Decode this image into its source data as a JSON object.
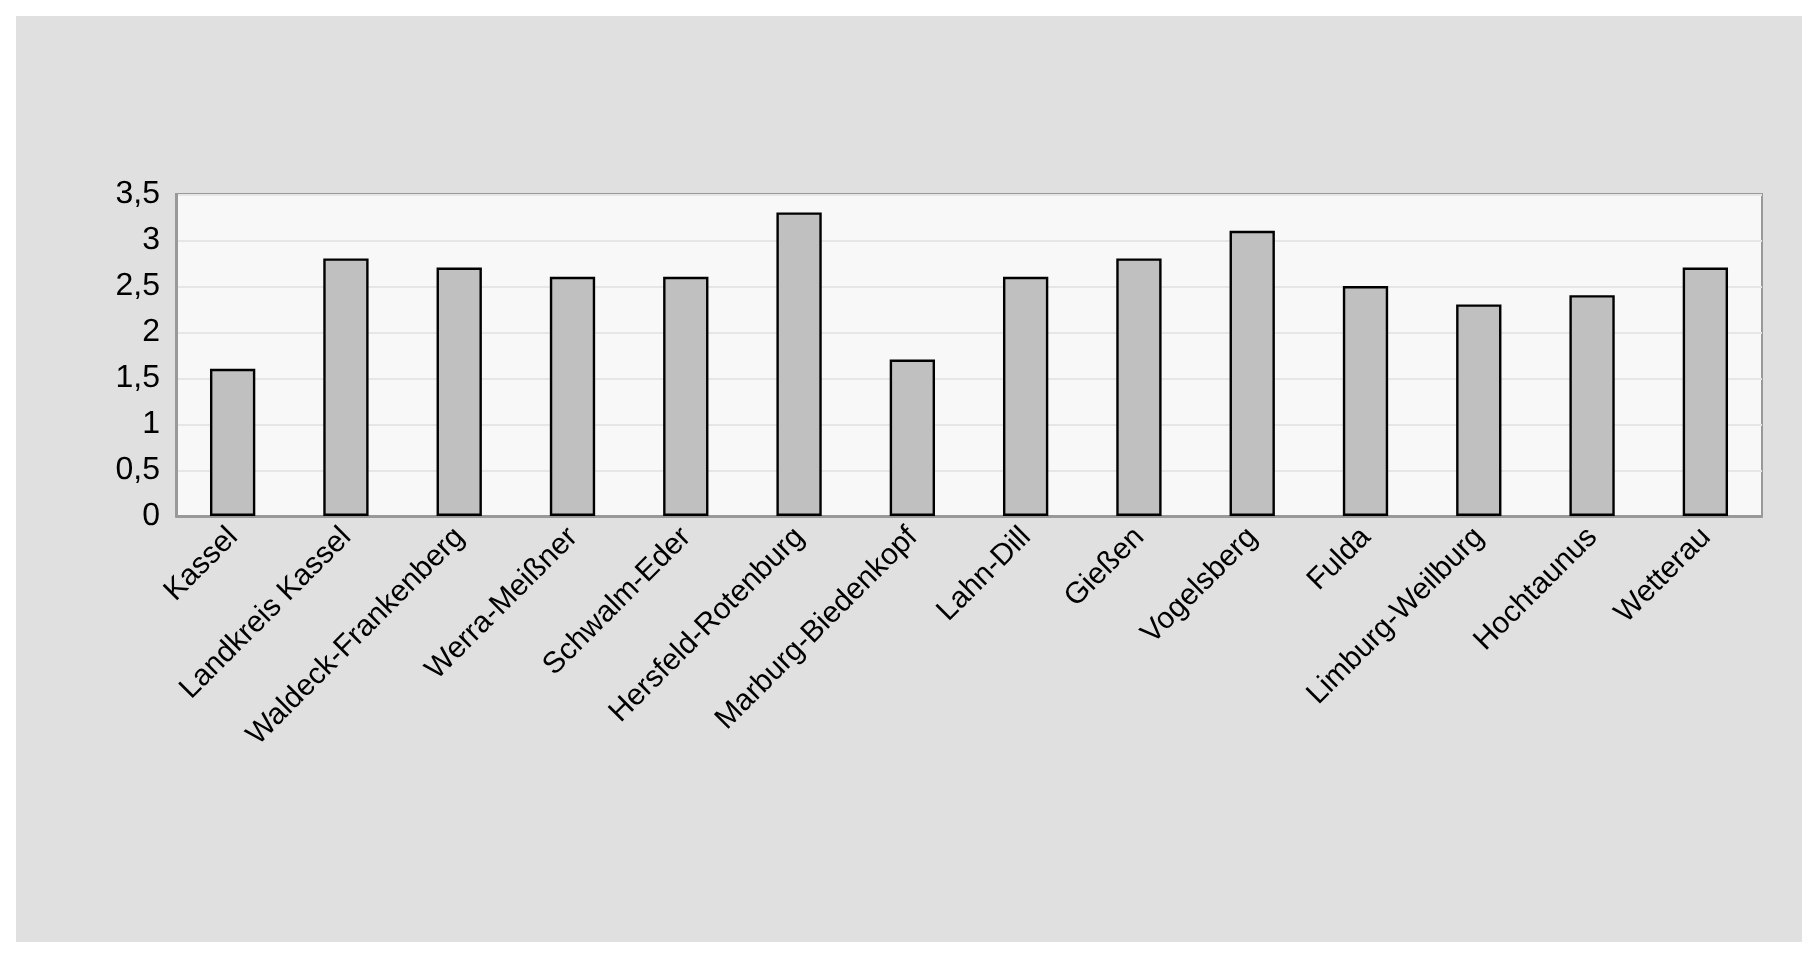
{
  "chart_data": {
    "type": "bar",
    "categories": [
      "Kassel",
      "Landkreis Kassel",
      "Waldeck-Frankenberg",
      "Werra-Meißner",
      "Schwalm-Eder",
      "Hersfeld-Rotenburg",
      "Marburg-Biedenkopf",
      "Lahn-Dill",
      "Gießen",
      "Vogelsberg",
      "Fulda",
      "Limburg-Weilburg",
      "Hochtaunus",
      "Wetterau"
    ],
    "values": [
      1.6,
      2.8,
      2.7,
      2.6,
      2.6,
      3.3,
      1.7,
      2.6,
      2.8,
      3.1,
      2.5,
      2.3,
      2.4,
      2.7
    ],
    "color": "#c0c0c0",
    "ylim": [
      0,
      3.5
    ],
    "yticks": [
      0,
      {
        "value": 0.5,
        "label": "0,5"
      },
      1,
      {
        "value": 1.5,
        "label": "1,5"
      },
      2,
      {
        "value": 2.5,
        "label": "2,5"
      },
      3,
      {
        "value": 3.5,
        "label": "3,5"
      }
    ],
    "grid": "y"
  }
}
